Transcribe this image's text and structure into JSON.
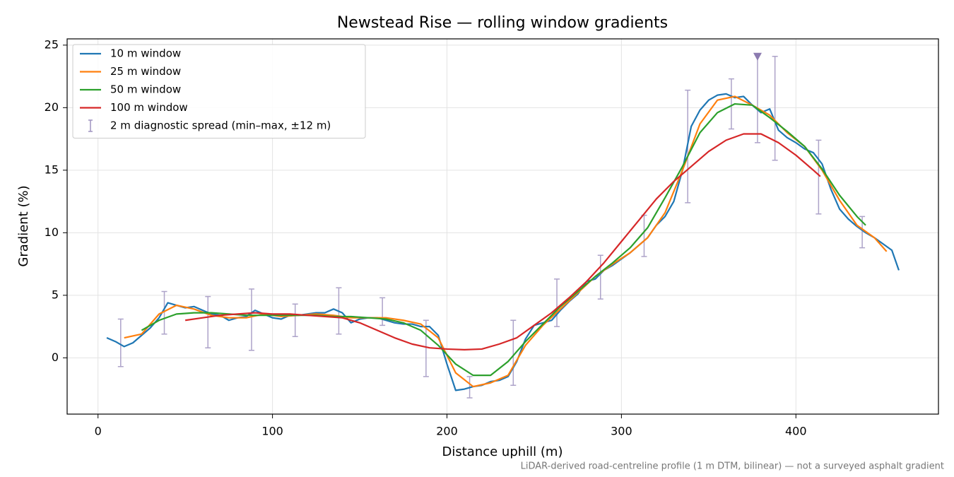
{
  "chart_data": {
    "type": "line",
    "title": "Newstead Rise — rolling window gradients",
    "xlabel": "Distance uphill (m)",
    "ylabel": "Gradient (%)",
    "footnote": "LiDAR-derived road-centreline profile (1 m DTM, bilinear) — not a surveyed asphalt gradient",
    "xlim": [
      -17.7,
      481.7
    ],
    "ylim": [
      -4.5,
      25.5
    ],
    "xticks": [
      0,
      100,
      200,
      300,
      400
    ],
    "yticks": [
      0,
      5,
      10,
      15,
      20,
      25
    ],
    "grid": true,
    "legend": "upper left",
    "series": [
      {
        "name": "10 m window",
        "color": "#1f77b4",
        "x": [
          5,
          10,
          15,
          20,
          25,
          30,
          35,
          40,
          45,
          50,
          55,
          60,
          65,
          70,
          75,
          80,
          85,
          90,
          95,
          100,
          105,
          110,
          115,
          120,
          125,
          130,
          135,
          140,
          145,
          150,
          155,
          160,
          165,
          170,
          175,
          180,
          185,
          190,
          195,
          200,
          205,
          210,
          215,
          220,
          225,
          230,
          235,
          240,
          245,
          250,
          255,
          260,
          265,
          270,
          275,
          280,
          285,
          290,
          295,
          300,
          305,
          310,
          315,
          320,
          325,
          330,
          335,
          340,
          345,
          350,
          355,
          360,
          365,
          370,
          375,
          380,
          385,
          390,
          395,
          400,
          405,
          410,
          415,
          420,
          425,
          430,
          435,
          440,
          445,
          450,
          455,
          459
        ],
        "values": [
          1.6,
          1.3,
          0.9,
          1.2,
          1.8,
          2.4,
          3.2,
          4.4,
          4.2,
          4.0,
          4.1,
          3.8,
          3.5,
          3.4,
          3.0,
          3.2,
          3.3,
          3.8,
          3.5,
          3.2,
          3.1,
          3.4,
          3.4,
          3.5,
          3.6,
          3.6,
          3.9,
          3.6,
          2.8,
          3.1,
          3.2,
          3.2,
          3.0,
          2.8,
          2.7,
          2.7,
          2.5,
          2.5,
          1.8,
          -0.5,
          -2.6,
          -2.5,
          -2.3,
          -2.2,
          -1.9,
          -1.8,
          -1.5,
          -0.3,
          1.5,
          2.6,
          2.8,
          3.0,
          3.8,
          4.5,
          5.1,
          6.1,
          6.3,
          7.0,
          7.4,
          7.9,
          8.4,
          9.0,
          9.6,
          10.6,
          11.3,
          12.5,
          15.0,
          18.5,
          19.8,
          20.6,
          21.0,
          21.1,
          20.8,
          20.9,
          20.2,
          19.6,
          19.9,
          18.2,
          17.6,
          17.2,
          16.7,
          16.4,
          15.5,
          13.5,
          11.9,
          11.1,
          10.5,
          10.0,
          9.6,
          9.1,
          8.6,
          7.0
        ]
      },
      {
        "name": "25 m window",
        "color": "#ff7f0e",
        "x": [
          15,
          25,
          35,
          45,
          55,
          65,
          75,
          85,
          95,
          105,
          115,
          125,
          135,
          145,
          155,
          165,
          175,
          185,
          195,
          205,
          215,
          225,
          235,
          245,
          255,
          265,
          275,
          285,
          295,
          305,
          315,
          325,
          335,
          345,
          355,
          365,
          375,
          385,
          395,
          405,
          415,
          425,
          435,
          445,
          452
        ],
        "values": [
          1.6,
          1.9,
          3.5,
          4.2,
          3.9,
          3.4,
          3.2,
          3.2,
          3.5,
          3.3,
          3.4,
          3.5,
          3.4,
          3.2,
          3.2,
          3.2,
          3.0,
          2.7,
          1.6,
          -1.2,
          -2.3,
          -2.0,
          -1.4,
          1.0,
          2.6,
          3.9,
          5.2,
          6.5,
          7.5,
          8.4,
          9.6,
          11.6,
          15.0,
          18.7,
          20.6,
          20.9,
          20.2,
          19.4,
          18.0,
          16.9,
          15.0,
          12.6,
          10.6,
          9.6,
          8.5
        ]
      },
      {
        "name": "50 m window",
        "color": "#2ca02c",
        "x": [
          25,
          35,
          45,
          55,
          65,
          75,
          85,
          95,
          105,
          115,
          125,
          135,
          145,
          155,
          165,
          175,
          185,
          195,
          205,
          215,
          225,
          235,
          245,
          255,
          265,
          275,
          285,
          295,
          305,
          315,
          325,
          335,
          345,
          355,
          365,
          375,
          385,
          395,
          405,
          415,
          425,
          435,
          440
        ],
        "values": [
          2.2,
          3.0,
          3.5,
          3.6,
          3.6,
          3.5,
          3.4,
          3.4,
          3.4,
          3.4,
          3.4,
          3.3,
          3.3,
          3.2,
          3.1,
          2.8,
          2.2,
          1.0,
          -0.5,
          -1.4,
          -1.4,
          -0.3,
          1.3,
          2.7,
          4.1,
          5.3,
          6.5,
          7.6,
          8.8,
          10.4,
          12.8,
          15.3,
          18.0,
          19.6,
          20.3,
          20.2,
          19.2,
          18.1,
          16.9,
          15.1,
          13.0,
          11.3,
          10.6
        ]
      },
      {
        "name": "100 m window",
        "color": "#d62728",
        "x": [
          50,
          60,
          70,
          80,
          90,
          100,
          110,
          120,
          130,
          140,
          150,
          160,
          170,
          180,
          190,
          200,
          210,
          220,
          230,
          240,
          250,
          260,
          270,
          280,
          290,
          300,
          310,
          320,
          330,
          340,
          350,
          360,
          370,
          380,
          390,
          400,
          410,
          414
        ],
        "values": [
          3.0,
          3.2,
          3.4,
          3.5,
          3.6,
          3.5,
          3.5,
          3.4,
          3.3,
          3.2,
          2.8,
          2.2,
          1.6,
          1.1,
          0.8,
          0.7,
          0.65,
          0.7,
          1.1,
          1.6,
          2.6,
          3.6,
          4.8,
          6.1,
          7.6,
          9.3,
          11.0,
          12.7,
          14.1,
          15.3,
          16.5,
          17.4,
          17.9,
          17.9,
          17.2,
          16.2,
          15.0,
          14.5
        ]
      }
    ],
    "error_bars": {
      "name": "2 m diagnostic spread (min–max, ±12 m)",
      "color": "#9f93c0",
      "x": [
        13,
        38,
        63,
        88,
        113,
        138,
        163,
        188,
        213,
        238,
        263,
        288,
        313,
        338,
        363,
        378,
        388,
        413,
        438
      ],
      "low": [
        -0.7,
        1.9,
        0.8,
        0.6,
        1.7,
        1.9,
        2.6,
        -1.5,
        -3.2,
        -2.2,
        2.5,
        4.7,
        8.1,
        12.4,
        18.3,
        17.2,
        15.8,
        11.5,
        8.8
      ],
      "high": [
        3.1,
        5.3,
        4.9,
        5.5,
        4.3,
        5.6,
        4.8,
        3.0,
        -1.5,
        3.0,
        6.3,
        8.2,
        11.4,
        21.4,
        22.3,
        24.2,
        24.1,
        17.4,
        11.3
      ]
    },
    "marker": {
      "x": 378,
      "y": 24.1,
      "color": "#8c7bb0"
    }
  }
}
